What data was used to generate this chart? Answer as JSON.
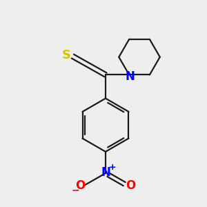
{
  "bg_color": "#eeeeee",
  "bond_color": "#1a1a1a",
  "S_color": "#cccc00",
  "N_color": "#0000ff",
  "O_color": "#ff0000",
  "line_width": 1.6,
  "figsize": [
    3.0,
    3.0
  ],
  "dpi": 100,
  "xlim": [
    0,
    10
  ],
  "ylim": [
    0,
    10
  ]
}
